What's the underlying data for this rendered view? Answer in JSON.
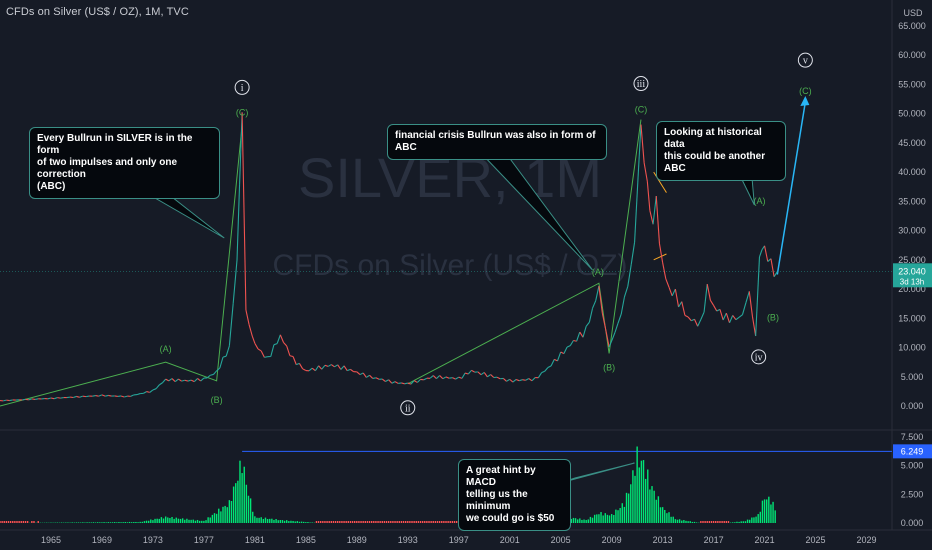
{
  "header": {
    "title": "CFDs on Silver (US$ / OZ), 1M, TVC"
  },
  "watermark": {
    "symbol": "SILVER, 1M",
    "name": "CFDs on Silver (US$ / OZ)"
  },
  "price_axis": {
    "currency": "USD",
    "ticks": [
      "65.000",
      "60.000",
      "55.000",
      "50.000",
      "45.000",
      "40.000",
      "35.000",
      "30.000",
      "25.000",
      "20.000",
      "15.000",
      "10.000",
      "5.000",
      "0.000"
    ],
    "last_price": "23.040",
    "countdown": "3d 13h"
  },
  "macd_axis": {
    "ticks": [
      "7.500",
      "5.000",
      "2.500",
      "0.000"
    ],
    "last_value": "6.249"
  },
  "time_axis": {
    "labels": [
      "1965",
      "1969",
      "1973",
      "1977",
      "1981",
      "1985",
      "1989",
      "1993",
      "1997",
      "2001",
      "2005",
      "2009",
      "2013",
      "2017",
      "2021",
      "2025",
      "2029"
    ]
  },
  "callouts": {
    "bullrun": "Every Bullrun in SILVER is in the form\n of two impulses and only one correction\n(ABC)",
    "financial": "financial crisis Bullrun was also in form of ABC",
    "historical": "Looking at historical data\n this could be another ABC",
    "macd": "A great hint by MACD\ntelling us the minimum\nwe could go is $50"
  },
  "wave_labels": {
    "A1": "(A)",
    "B1": "(B)",
    "C1": "(C)",
    "A2": "(A)",
    "B2": "(B)",
    "C2": "(C)",
    "A3": "(A)",
    "B3": "(B)",
    "C3": "(C)",
    "w1": "i",
    "w2": "ii",
    "w3": "iii",
    "w4": "iv",
    "w5": "v"
  },
  "colors": {
    "background": "#161b26",
    "up": "#26a69a",
    "down": "#ef5350",
    "wave_line": "#4caf50",
    "projection": "#29b6f6",
    "macd_hist": "#00e676",
    "macd_neg": "#ff5252",
    "macd_level": "#2962ff",
    "price_tag": "#26a69a"
  },
  "chart_data": [
    {
      "type": "line",
      "title": "CFDs on Silver (US$ / OZ), 1M, TVC",
      "x_unit": "year",
      "y_unit": "USD",
      "ylim": [
        0,
        65
      ],
      "xlim": [
        1961,
        2031
      ],
      "series": [
        {
          "x": [
            1961,
            1965,
            1969,
            1971,
            1973,
            1974,
            1975,
            1976,
            1977,
            1978,
            1979,
            1979.6,
            1980,
            1980.3,
            1980.8,
            1981,
            1982,
            1983,
            1984,
            1985,
            1987,
            1988,
            1990,
            1992,
            1993,
            1995,
            1997,
            1998,
            2001,
            2003,
            2004,
            2006,
            2007,
            2008,
            2008.8,
            2009.5,
            2010,
            2010.8,
            2011.3,
            2011.8,
            2012,
            2012.5,
            2013,
            2013.5,
            2014,
            2015,
            2016,
            2016.5,
            2017,
            2018,
            2019,
            2019.8,
            2020.3,
            2020.6,
            2021,
            2021.5,
            2022
          ],
          "y": [
            0.9,
            1.3,
            1.8,
            1.6,
            2.6,
            4.5,
            4.4,
            4.3,
            4.6,
            5.8,
            10,
            25,
            48,
            16,
            12,
            10.5,
            8,
            12,
            8,
            6,
            7,
            6.5,
            5,
            4,
            3.8,
            5,
            4.7,
            6,
            4.3,
            4.6,
            6.5,
            11,
            13,
            20,
            10,
            14,
            18,
            28,
            48,
            37,
            32,
            34,
            24,
            20,
            19,
            15,
            14,
            20,
            17,
            15,
            15,
            19,
            12,
            26,
            27,
            24,
            23
          ]
        }
      ],
      "last_price": 23.04,
      "wave_labels": [
        {
          "text": "(A)",
          "x": 1974,
          "y": 7.5
        },
        {
          "text": "(B)",
          "x": 1978,
          "y": 4.3
        },
        {
          "text": "(C)",
          "x": 1980,
          "y": 48
        },
        {
          "text": "i",
          "x": 1980,
          "y": 48
        },
        {
          "text": "ii",
          "x": 1993,
          "y": 3.8
        },
        {
          "text": "(A)",
          "x": 2008,
          "y": 21
        },
        {
          "text": "(B)",
          "x": 2008.8,
          "y": 9
        },
        {
          "text": "(C)",
          "x": 2011.3,
          "y": 49
        },
        {
          "text": "iii",
          "x": 2011.3,
          "y": 49
        },
        {
          "text": "(A)",
          "x": 2020.6,
          "y": 33
        },
        {
          "text": "(B)",
          "x": 2021.5,
          "y": 16
        },
        {
          "text": "iv",
          "x": 2020.3,
          "y": 12
        },
        {
          "text": "(C)",
          "x": 2024.2,
          "y": 53
        },
        {
          "text": "v",
          "x": 2024.2,
          "y": 53
        }
      ]
    },
    {
      "type": "bar",
      "title": "MACD",
      "ylim": [
        0,
        7.5
      ],
      "last_value": 6.249,
      "x": [
        1961,
        1972,
        1974,
        1977,
        1979,
        1980,
        1980.5,
        1981,
        1983,
        1986,
        1992,
        1999,
        2004,
        2006,
        2007,
        2008,
        2009,
        2010,
        2010.5,
        2011,
        2011.5,
        2012,
        2013,
        2014,
        2016,
        2018,
        2019.5,
        2020.5,
        2021,
        2021.5,
        2022
      ],
      "values": [
        0,
        0.1,
        0.6,
        0.2,
        2,
        6.2,
        3,
        0.6,
        0.3,
        0,
        0,
        0,
        0.2,
        0.5,
        0.3,
        1.0,
        0.8,
        2,
        4,
        6.7,
        6,
        4,
        1.5,
        0.4,
        0,
        0,
        0.2,
        0.8,
        2.6,
        2.3,
        1.0
      ]
    }
  ]
}
